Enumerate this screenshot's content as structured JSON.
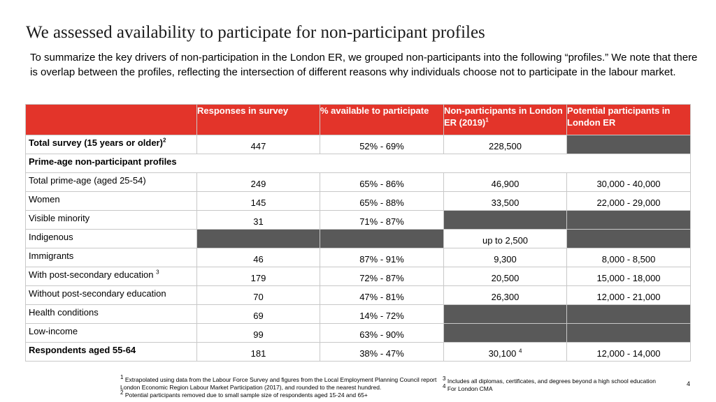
{
  "title": "We assessed availability to participate for non-participant profiles",
  "intro": "To summarize the key drivers of non-participation in the London ER, we grouped non-participants into the following “profiles.” We note that there is overlap between the profiles, reflecting the intersection of different reasons why individuals choose not to participate in the labour market.",
  "table": {
    "headers": {
      "responses": "Responses in survey",
      "available": "% available to participate",
      "nonparticipants": "Non-participants in London ER (2019)",
      "nonparticipants_sup": "1",
      "potential": "Potential participants in London ER"
    },
    "total": {
      "label": "Total survey (15 years or older)",
      "label_sup": "2",
      "responses": "447",
      "available": "52% - 69%",
      "nonparticipants": "228,500"
    },
    "section_label": "Prime-age non-participant profiles",
    "rows": [
      {
        "label": "Total prime-age (aged 25-54)",
        "responses": "249",
        "available": "65% - 86%",
        "nonparticipants": "46,900",
        "potential": "30,000 - 40,000"
      },
      {
        "label": "Women",
        "responses": "145",
        "available": "65% - 88%",
        "nonparticipants": "33,500",
        "potential": "22,000 - 29,000"
      },
      {
        "label": "Visible minority",
        "responses": "31",
        "available": "71% - 87%"
      },
      {
        "label": "Indigenous",
        "nonparticipants": "up to 2,500"
      },
      {
        "label": "Immigrants",
        "responses": "46",
        "available": "87% - 91%",
        "nonparticipants": "9,300",
        "potential": "8,000 - 8,500"
      },
      {
        "label": "With post-secondary education",
        "label_sup": "3",
        "responses": "179",
        "available": "72% - 87%",
        "nonparticipants": "20,500",
        "potential": "15,000 - 18,000"
      },
      {
        "label": "Without post-secondary education",
        "responses": "70",
        "available": "47% - 81%",
        "nonparticipants": "26,300",
        "potential": "12,000 - 21,000"
      },
      {
        "label": "Health conditions",
        "responses": "69",
        "available": "14% - 72%"
      },
      {
        "label": "Low-income",
        "responses": "99",
        "available": "63% - 90%"
      }
    ],
    "last": {
      "label": "Respondents aged 55-64",
      "responses": "181",
      "available": "38% - 47%",
      "nonparticipants": "30,100",
      "nonparticipants_sup": "4",
      "potential": "12,000 - 14,000"
    }
  },
  "footnotes": {
    "fn1_num": "1",
    "fn1_line1": "Extrapolated using data from the Labour Force Survey and figures from the Local Employment Planning Council report",
    "fn1_line2": "London Economic Region Labour Market Participation (2017), and rounded to the nearest hundred.",
    "fn2_num": "2",
    "fn2": "Potential participants removed due to small sample size of respondents aged 15-24 and 65+",
    "fn3_num": "3",
    "fn3": "Includes all diplomas, certificates, and degrees beyond a high school education",
    "fn4_num": "4",
    "fn4": "For London CMA"
  },
  "page_number": "4",
  "colors": {
    "header_bg": "#e3342a",
    "gray_cell": "#595959"
  }
}
